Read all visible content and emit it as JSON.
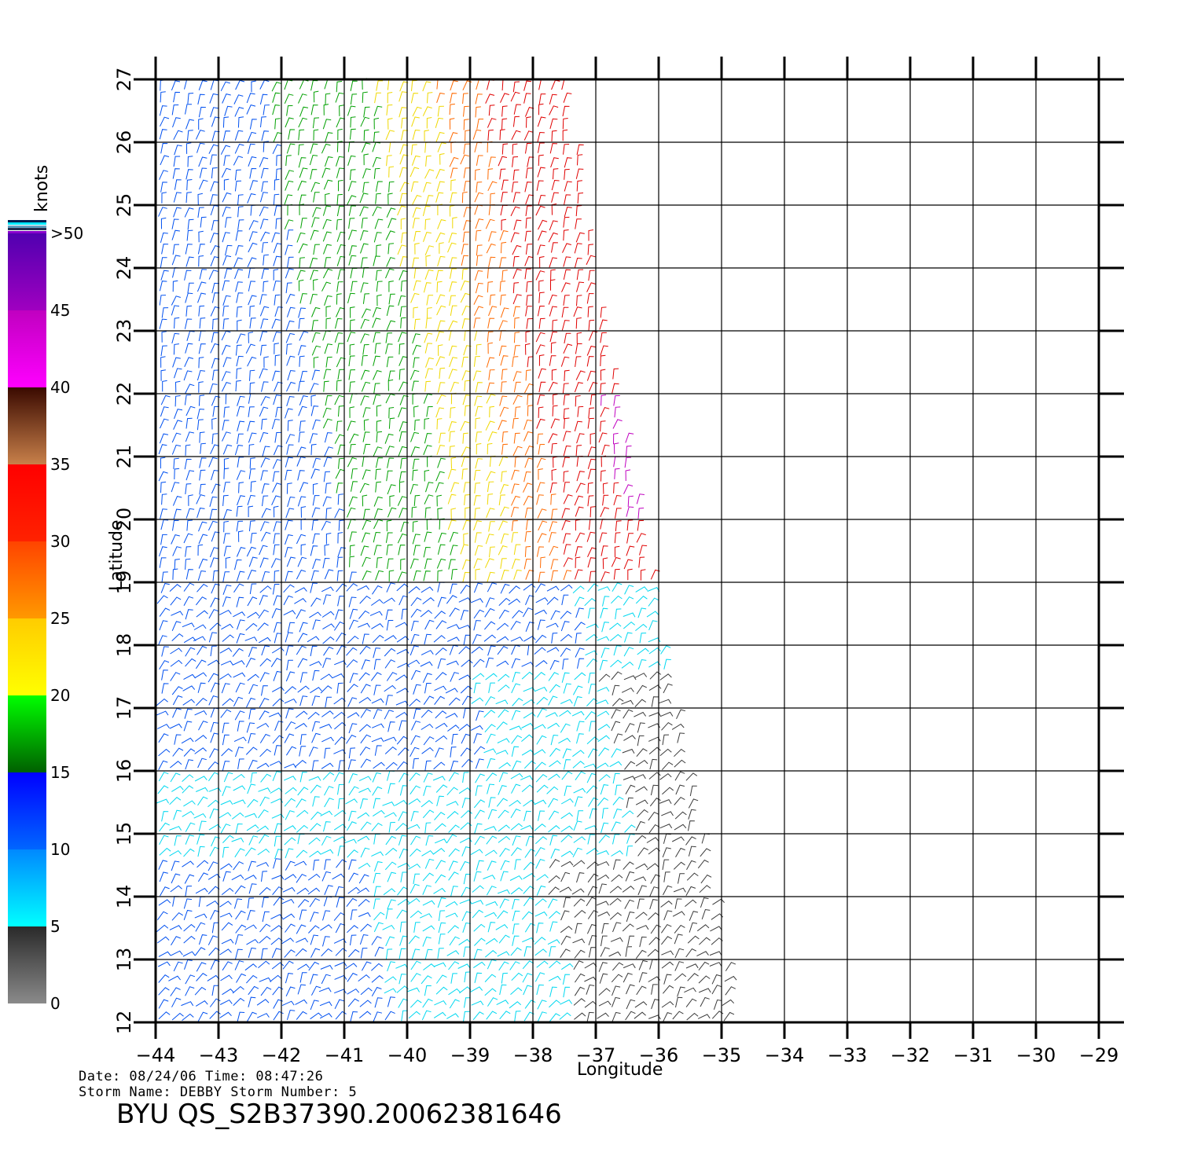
{
  "map": {
    "lon_range": [
      -44,
      -29
    ],
    "lat_range": [
      12,
      27
    ],
    "lon_ticks": [
      "−44",
      "−43",
      "−42",
      "−41",
      "−40",
      "−39",
      "−38",
      "−37",
      "−36",
      "−35",
      "−34",
      "−33",
      "−32",
      "−31",
      "−30",
      "−29"
    ],
    "lat_ticks": [
      "12",
      "13",
      "14",
      "15",
      "16",
      "17",
      "18",
      "19",
      "20",
      "21",
      "22",
      "23",
      "24",
      "25",
      "26",
      "27"
    ],
    "xlabel": "Longitude",
    "ylabel": "Latitude",
    "swath_east_edge": [
      {
        "lat": 27,
        "lon": -37.45
      },
      {
        "lat": 24,
        "lon": -37.0
      },
      {
        "lat": 21,
        "lon": -36.4
      },
      {
        "lat": 18,
        "lon": -35.9
      },
      {
        "lat": 15,
        "lon": -35.3
      },
      {
        "lat": 12,
        "lon": -34.7
      }
    ]
  },
  "legend": {
    "unit": "knots",
    "labels": [
      {
        "value": 0,
        "text": "0"
      },
      {
        "value": 5,
        "text": "5"
      },
      {
        "value": 10,
        "text": "10"
      },
      {
        "value": 15,
        "text": "15"
      },
      {
        "value": 20,
        "text": "20"
      },
      {
        "value": 25,
        "text": "25"
      },
      {
        "value": 30,
        "text": "30"
      },
      {
        "value": 35,
        "text": "35"
      },
      {
        "value": 40,
        "text": "40"
      },
      {
        "value": 45,
        "text": "45"
      },
      {
        "value": 50,
        "text": ">50"
      }
    ],
    "bands": [
      {
        "from": 0,
        "to": 5,
        "colors": [
          "#8a8a8a",
          "#2a2a2a"
        ]
      },
      {
        "from": 5,
        "to": 10,
        "colors": [
          "#00ffff",
          "#0088ff"
        ]
      },
      {
        "from": 10,
        "to": 15,
        "colors": [
          "#0066ff",
          "#0000ff"
        ]
      },
      {
        "from": 15,
        "to": 20,
        "colors": [
          "#006000",
          "#00ff00"
        ]
      },
      {
        "from": 20,
        "to": 25,
        "colors": [
          "#ffff00",
          "#ffcc00"
        ]
      },
      {
        "from": 25,
        "to": 30,
        "colors": [
          "#ff9900",
          "#ff4400"
        ]
      },
      {
        "from": 30,
        "to": 35,
        "colors": [
          "#ff2200",
          "#ff0000"
        ]
      },
      {
        "from": 35,
        "to": 40,
        "colors": [
          "#c8804a",
          "#3a0a00"
        ]
      },
      {
        "from": 40,
        "to": 45,
        "colors": [
          "#ff00ff",
          "#c000c0"
        ]
      },
      {
        "from": 45,
        "to": 50,
        "colors": [
          "#a000c0",
          "#5000b0"
        ]
      }
    ]
  },
  "info": {
    "date_line": "Date: 08/24/06   Time: 08:47:26",
    "storm_line": "Storm  Name: DEBBY    Storm  Number: 5",
    "title": "BYU  QS_S2B37390.20062381646"
  },
  "colors": {
    "calm": "#3a3a3a",
    "light": "#00d8f0",
    "moderate": "#0050f0",
    "fresh": "#00a000",
    "strong": "#f0d800",
    "gale": "#ff6a00",
    "storm": "#e00000",
    "violent": "#c000c0"
  }
}
